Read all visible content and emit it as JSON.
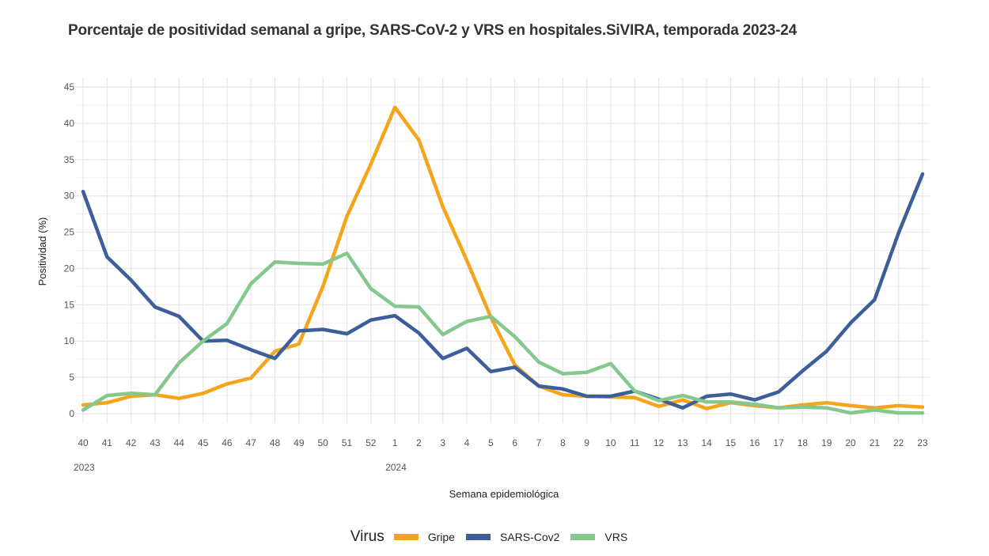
{
  "chart_data": {
    "type": "line",
    "title": "Porcentaje de positividad semanal a gripe, SARS-CoV-2 y VRS en hospitales.SiVIRA, temporada 2023-24",
    "xlabel": "Semana epidemiológica",
    "ylabel": "Positividad (%)",
    "ylim": [
      0,
      45
    ],
    "yticks": [
      0,
      5,
      10,
      15,
      20,
      25,
      30,
      35,
      40,
      45
    ],
    "grid": true,
    "x": [
      "40",
      "41",
      "42",
      "43",
      "44",
      "45",
      "46",
      "47",
      "48",
      "49",
      "50",
      "51",
      "52",
      "1",
      "2",
      "3",
      "4",
      "5",
      "6",
      "7",
      "8",
      "9",
      "10",
      "11",
      "12",
      "13",
      "14",
      "15",
      "16",
      "17",
      "18",
      "19",
      "20",
      "21",
      "22",
      "23"
    ],
    "year_labels": [
      {
        "at": "40",
        "label": "2023"
      },
      {
        "at": "1",
        "label": "2024"
      }
    ],
    "legend": {
      "title": "Virus",
      "placement": "bottom"
    },
    "series": [
      {
        "name": "Gripe",
        "color": "#F4A51C",
        "values": [
          1.2,
          1.5,
          2.4,
          2.6,
          2.1,
          2.8,
          4.1,
          4.9,
          8.6,
          9.6,
          17.5,
          27.2,
          34.4,
          42.2,
          37.7,
          28.5,
          21.1,
          13.3,
          6.7,
          3.8,
          2.6,
          2.4,
          2.3,
          2.2,
          1.0,
          1.9,
          0.7,
          1.5,
          1.1,
          0.8,
          1.2,
          1.5,
          1.1,
          0.8,
          1.1,
          0.9
        ]
      },
      {
        "name": "SARS-Cov2",
        "color": "#3C5E9A",
        "values": [
          30.6,
          21.6,
          18.4,
          14.7,
          13.4,
          10.0,
          10.1,
          8.8,
          7.6,
          11.4,
          11.6,
          11.0,
          12.9,
          13.5,
          11.1,
          7.6,
          9.0,
          5.8,
          6.4,
          3.8,
          3.4,
          2.4,
          2.4,
          3.1,
          2.0,
          0.8,
          2.4,
          2.7,
          1.9,
          3.0,
          5.9,
          8.6,
          12.5,
          15.7,
          24.9,
          33.0
        ]
      },
      {
        "name": "VRS",
        "color": "#84C88E",
        "values": [
          0.5,
          2.5,
          2.8,
          2.6,
          7.0,
          10.0,
          12.4,
          17.9,
          20.9,
          20.7,
          20.6,
          22.1,
          17.2,
          14.8,
          14.7,
          10.9,
          12.7,
          13.4,
          10.6,
          7.1,
          5.5,
          5.7,
          6.9,
          3.1,
          1.8,
          2.5,
          1.6,
          1.6,
          1.3,
          0.8,
          0.9,
          0.8,
          0.1,
          0.5,
          0.1,
          0.1
        ]
      }
    ]
  }
}
